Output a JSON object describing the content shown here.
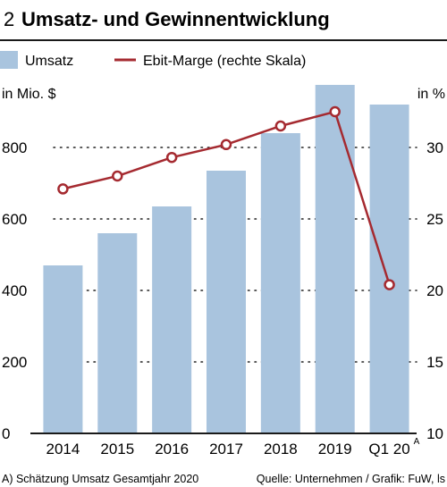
{
  "header": {
    "number": "2",
    "title": "Umsatz- und Gewinnentwicklung"
  },
  "legend": [
    {
      "label": "Umsatz",
      "kind": "bar",
      "color": "#a9c4de"
    },
    {
      "label": "Ebit-Marge (rechte Skala)",
      "kind": "line",
      "color": "#a52a30"
    }
  ],
  "chart_data": {
    "type": "bar",
    "categories": [
      "2014",
      "2015",
      "2016",
      "2017",
      "2018",
      "2019",
      "Q1 20"
    ],
    "category_superscripts": [
      "",
      "",
      "",
      "",
      "",
      "",
      "A"
    ],
    "series": [
      {
        "name": "Umsatz",
        "type": "bar",
        "axis": "left",
        "color": "#a9c4de",
        "values": [
          470,
          560,
          635,
          735,
          840,
          975,
          920
        ]
      },
      {
        "name": "Ebit-Marge (rechte Skala)",
        "type": "line",
        "axis": "right",
        "color": "#a52a30",
        "values": [
          27.1,
          28.0,
          29.3,
          30.2,
          31.5,
          32.5,
          20.4
        ]
      }
    ],
    "left_axis": {
      "label": "in Mio. $",
      "min": 0,
      "max": 975,
      "ticks": [
        0,
        200,
        400,
        600,
        800
      ]
    },
    "right_axis": {
      "label": "in %",
      "min": 10,
      "max": 34.375,
      "ticks": [
        10,
        15,
        20,
        25,
        30
      ]
    },
    "grid": "dotted horizontal at left-axis ticks"
  },
  "footnote": {
    "left": "A) Schätzung Umsatz Gesamtjahr 2020",
    "right": "Quelle: Unternehmen / Grafik: FuW, ls"
  }
}
